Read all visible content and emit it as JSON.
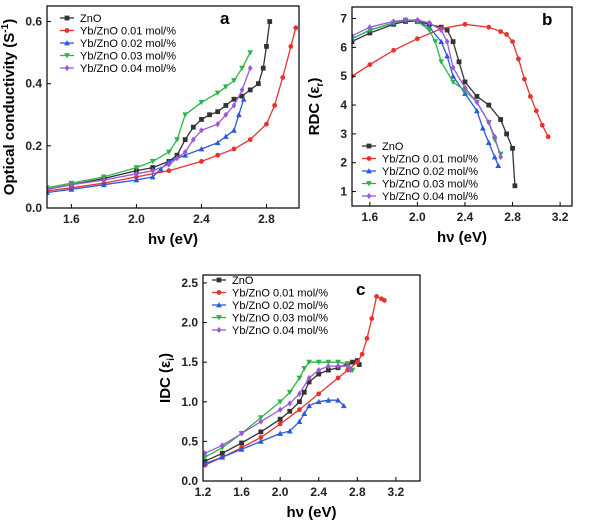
{
  "chart_data": [
    {
      "panel": "a",
      "type": "line",
      "xlabel": "hν (eV)",
      "ylabel": "Optical conductivity (S",
      "ylabel_sup": "-1",
      "ylabel_tail": ")",
      "xlim": [
        1.45,
        3.0
      ],
      "ylim": [
        0.0,
        0.65
      ],
      "xticks": [
        "1.6",
        "2.0",
        "2.4",
        "2.8"
      ],
      "xtick_values": [
        1.6,
        2.0,
        2.4,
        2.8
      ],
      "yticks": [
        "0.0",
        "0.2",
        "0.4",
        "0.6"
      ],
      "ytick_values": [
        0.0,
        0.2,
        0.4,
        0.6
      ],
      "legend": [
        "ZnO",
        "Yb/ZnO 0.01 mol/%",
        "Yb/ZnO 0.02 mol/%",
        "Yb/ZnO 0.03 mol/%",
        "Yb/ZnO 0.04 mol/%"
      ],
      "series": [
        {
          "name": "ZnO",
          "color": "#333333",
          "marker": "square",
          "x": [
            1.45,
            1.6,
            1.8,
            2.0,
            2.1,
            2.2,
            2.25,
            2.3,
            2.35,
            2.4,
            2.45,
            2.5,
            2.55,
            2.6,
            2.65,
            2.7,
            2.75,
            2.78,
            2.8,
            2.82
          ],
          "y": [
            0.06,
            0.075,
            0.095,
            0.12,
            0.13,
            0.15,
            0.17,
            0.22,
            0.26,
            0.285,
            0.3,
            0.31,
            0.33,
            0.35,
            0.36,
            0.38,
            0.4,
            0.45,
            0.52,
            0.6
          ]
        },
        {
          "name": "Yb/ZnO 0.01 mol/%",
          "color": "#e8322e",
          "marker": "circle",
          "x": [
            1.45,
            1.6,
            1.8,
            2.0,
            2.2,
            2.4,
            2.5,
            2.6,
            2.7,
            2.8,
            2.85,
            2.9,
            2.95,
            2.98
          ],
          "y": [
            0.055,
            0.065,
            0.08,
            0.1,
            0.12,
            0.15,
            0.17,
            0.19,
            0.22,
            0.27,
            0.33,
            0.42,
            0.52,
            0.58
          ]
        },
        {
          "name": "Yb/ZnO 0.02 mol/%",
          "color": "#2a5bd7",
          "marker": "triangle-up",
          "x": [
            1.45,
            1.6,
            1.8,
            2.0,
            2.1,
            2.15,
            2.2,
            2.3,
            2.4,
            2.5,
            2.55,
            2.6,
            2.63,
            2.66
          ],
          "y": [
            0.05,
            0.06,
            0.075,
            0.09,
            0.1,
            0.125,
            0.15,
            0.17,
            0.19,
            0.21,
            0.23,
            0.25,
            0.3,
            0.35
          ]
        },
        {
          "name": "Yb/ZnO 0.03 mol/%",
          "color": "#2eb34a",
          "marker": "triangle-down",
          "x": [
            1.45,
            1.6,
            1.8,
            2.0,
            2.1,
            2.2,
            2.25,
            2.3,
            2.4,
            2.5,
            2.55,
            2.6,
            2.65,
            2.7
          ],
          "y": [
            0.065,
            0.08,
            0.1,
            0.13,
            0.15,
            0.18,
            0.22,
            0.3,
            0.34,
            0.37,
            0.39,
            0.41,
            0.45,
            0.5
          ]
        },
        {
          "name": "Yb/ZnO 0.04 mol/%",
          "color": "#9b59d6",
          "marker": "diamond",
          "x": [
            1.45,
            1.6,
            1.8,
            2.0,
            2.1,
            2.2,
            2.25,
            2.3,
            2.35,
            2.4,
            2.5,
            2.55,
            2.6,
            2.65,
            2.7
          ],
          "y": [
            0.06,
            0.075,
            0.09,
            0.11,
            0.12,
            0.14,
            0.16,
            0.18,
            0.22,
            0.25,
            0.27,
            0.3,
            0.33,
            0.38,
            0.45
          ]
        }
      ]
    },
    {
      "panel": "b",
      "type": "line",
      "xlabel": "hν (eV)",
      "ylabel": "RDC (ε",
      "ylabel_sub": "r",
      "ylabel_tail": ")",
      "xlim": [
        1.45,
        3.3
      ],
      "ylim": [
        0.5,
        7.4
      ],
      "xticks": [
        "1.6",
        "2.0",
        "2.4",
        "2.8",
        "3.2"
      ],
      "xtick_values": [
        1.6,
        2.0,
        2.4,
        2.8,
        3.2
      ],
      "yticks": [
        "1",
        "2",
        "3",
        "4",
        "5",
        "6",
        "7"
      ],
      "ytick_values": [
        1,
        2,
        3,
        4,
        5,
        6,
        7
      ],
      "legend": [
        "ZnO",
        "Yb/ZnO 0.01 mol/%",
        "Yb/ZnO 0.02 mol/%",
        "Yb/ZnO 0.03 mol/%",
        "Yb/ZnO 0.04 mol/%"
      ],
      "series": [
        {
          "name": "ZnO",
          "color": "#333333",
          "marker": "square",
          "x": [
            1.45,
            1.6,
            1.8,
            1.9,
            2.0,
            2.1,
            2.2,
            2.25,
            2.3,
            2.35,
            2.4,
            2.5,
            2.6,
            2.7,
            2.75,
            2.8,
            2.82
          ],
          "y": [
            6.2,
            6.5,
            6.8,
            6.9,
            6.9,
            6.8,
            6.7,
            6.6,
            6.2,
            5.5,
            4.8,
            4.3,
            4.0,
            3.5,
            3.0,
            2.5,
            1.2
          ]
        },
        {
          "name": "Yb/ZnO 0.01 mol/%",
          "color": "#e8322e",
          "marker": "circle",
          "x": [
            1.45,
            1.6,
            1.8,
            2.0,
            2.2,
            2.4,
            2.6,
            2.7,
            2.75,
            2.8,
            2.85,
            2.9,
            2.95,
            3.0,
            3.05,
            3.1
          ],
          "y": [
            5.0,
            5.4,
            5.9,
            6.3,
            6.65,
            6.8,
            6.7,
            6.55,
            6.45,
            6.2,
            5.6,
            4.9,
            4.3,
            3.8,
            3.3,
            2.9
          ]
        },
        {
          "name": "Yb/ZnO 0.02 mol/%",
          "color": "#2a5bd7",
          "marker": "triangle-up",
          "x": [
            1.45,
            1.6,
            1.8,
            1.9,
            2.0,
            2.1,
            2.2,
            2.25,
            2.3,
            2.4,
            2.5,
            2.55,
            2.6,
            2.65,
            2.68
          ],
          "y": [
            6.3,
            6.6,
            6.85,
            6.95,
            6.9,
            6.7,
            6.2,
            5.7,
            5.0,
            4.4,
            3.8,
            3.2,
            2.7,
            2.2,
            1.9
          ]
        },
        {
          "name": "Yb/ZnO 0.03 mol/%",
          "color": "#2eb34a",
          "marker": "triangle-down",
          "x": [
            1.45,
            1.6,
            1.8,
            1.9,
            2.0,
            2.1,
            2.15,
            2.2,
            2.3,
            2.4,
            2.5,
            2.6,
            2.65,
            2.7
          ],
          "y": [
            6.3,
            6.6,
            6.85,
            6.95,
            6.9,
            6.6,
            6.2,
            5.5,
            4.8,
            4.5,
            4.1,
            3.4,
            2.8,
            2.3
          ]
        },
        {
          "name": "Yb/ZnO 0.04 mol/%",
          "color": "#9b59d6",
          "marker": "diamond",
          "x": [
            1.45,
            1.6,
            1.8,
            1.9,
            2.0,
            2.1,
            2.2,
            2.25,
            2.3,
            2.4,
            2.5,
            2.6,
            2.65,
            2.7
          ],
          "y": [
            6.4,
            6.7,
            6.9,
            6.95,
            6.95,
            6.85,
            6.6,
            6.2,
            5.3,
            4.6,
            4.1,
            3.4,
            2.9,
            2.2
          ]
        }
      ]
    },
    {
      "panel": "c",
      "type": "line",
      "xlabel": "hν (eV)",
      "ylabel": "IDC (ε",
      "ylabel_sub": "i",
      "ylabel_tail": ")",
      "xlim": [
        1.2,
        3.45
      ],
      "ylim": [
        0.0,
        2.6
      ],
      "xticks": [
        "1.2",
        "1.6",
        "2.0",
        "2.4",
        "2.8",
        "3.2"
      ],
      "xtick_values": [
        1.2,
        1.6,
        2.0,
        2.4,
        2.8,
        3.2
      ],
      "yticks": [
        "0.0",
        "0.5",
        "1.0",
        "1.5",
        "2.0",
        "2.5"
      ],
      "ytick_values": [
        0.0,
        0.5,
        1.0,
        1.5,
        2.0,
        2.5
      ],
      "legend": [
        "ZnO",
        "Yb/ZnO 0.01 mol/%",
        "Yb/ZnO 0.02 mol/%",
        "Yb/ZnO 0.03 mol/%",
        "Yb/ZnO 0.04 mol/%"
      ],
      "series": [
        {
          "name": "ZnO",
          "color": "#333333",
          "marker": "square",
          "x": [
            1.22,
            1.4,
            1.6,
            1.8,
            2.0,
            2.1,
            2.2,
            2.25,
            2.3,
            2.4,
            2.5,
            2.6,
            2.7,
            2.75,
            2.8,
            2.82
          ],
          "y": [
            0.25,
            0.35,
            0.48,
            0.62,
            0.78,
            0.88,
            1.0,
            1.12,
            1.25,
            1.35,
            1.4,
            1.43,
            1.48,
            1.5,
            1.52,
            1.47
          ]
        },
        {
          "name": "Yb/ZnO 0.01 mol/%",
          "color": "#e8322e",
          "marker": "circle",
          "x": [
            1.22,
            1.4,
            1.6,
            1.8,
            2.0,
            2.2,
            2.4,
            2.6,
            2.7,
            2.8,
            2.85,
            2.9,
            2.95,
            3.0,
            3.05,
            3.08
          ],
          "y": [
            0.2,
            0.3,
            0.42,
            0.55,
            0.72,
            0.9,
            1.1,
            1.3,
            1.4,
            1.5,
            1.6,
            1.8,
            2.05,
            2.33,
            2.3,
            2.28
          ]
        },
        {
          "name": "Yb/ZnO 0.02 mol/%",
          "color": "#2a5bd7",
          "marker": "triangle-up",
          "x": [
            1.22,
            1.4,
            1.6,
            1.8,
            2.0,
            2.1,
            2.2,
            2.25,
            2.3,
            2.4,
            2.5,
            2.6,
            2.66
          ],
          "y": [
            0.22,
            0.3,
            0.4,
            0.5,
            0.6,
            0.63,
            0.75,
            0.85,
            0.95,
            1.0,
            1.02,
            1.02,
            0.95
          ]
        },
        {
          "name": "Yb/ZnO 0.03 mol/%",
          "color": "#2eb34a",
          "marker": "triangle-down",
          "x": [
            1.22,
            1.4,
            1.6,
            1.8,
            2.0,
            2.1,
            2.2,
            2.25,
            2.3,
            2.4,
            2.5,
            2.6,
            2.7,
            2.75
          ],
          "y": [
            0.3,
            0.42,
            0.6,
            0.8,
            1.0,
            1.12,
            1.3,
            1.42,
            1.5,
            1.5,
            1.5,
            1.5,
            1.48,
            1.4
          ]
        },
        {
          "name": "Yb/ZnO 0.04 mol/%",
          "color": "#9b59d6",
          "marker": "diamond",
          "x": [
            1.22,
            1.4,
            1.6,
            1.8,
            2.0,
            2.1,
            2.2,
            2.3,
            2.4,
            2.5,
            2.6,
            2.7,
            2.73
          ],
          "y": [
            0.35,
            0.45,
            0.6,
            0.75,
            0.9,
            0.98,
            1.1,
            1.3,
            1.4,
            1.45,
            1.45,
            1.45,
            1.4
          ]
        }
      ]
    }
  ]
}
